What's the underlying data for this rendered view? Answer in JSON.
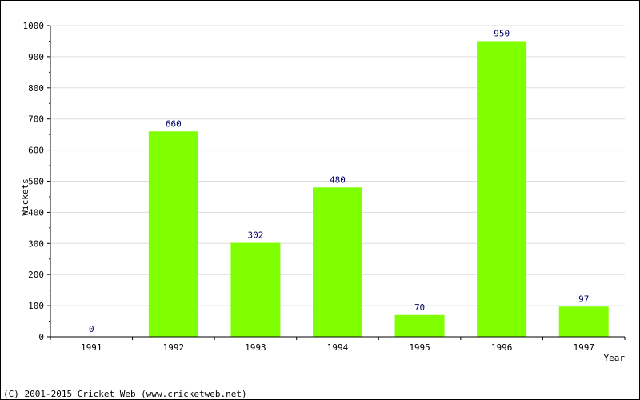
{
  "chart_data": {
    "type": "bar",
    "categories": [
      "1991",
      "1992",
      "1993",
      "1994",
      "1995",
      "1996",
      "1997"
    ],
    "values": [
      0,
      660,
      302,
      480,
      70,
      950,
      97
    ],
    "data_labels": [
      "0",
      "660",
      "302",
      "480",
      "70",
      "950",
      "97"
    ],
    "title": "",
    "xlabel": "Year",
    "ylabel": "Wickets",
    "ylim": [
      0,
      1000
    ],
    "yticks": [
      0,
      100,
      200,
      300,
      400,
      500,
      600,
      700,
      800,
      900,
      1000
    ],
    "grid": true,
    "legend": "none",
    "colors": {
      "bar": "#80ff00",
      "grid": "#dddddd",
      "axis": "#000000",
      "data_label": "#000066"
    }
  },
  "footer": {
    "copyright": "(C) 2001-2015 Cricket Web (www.cricketweb.net)"
  }
}
